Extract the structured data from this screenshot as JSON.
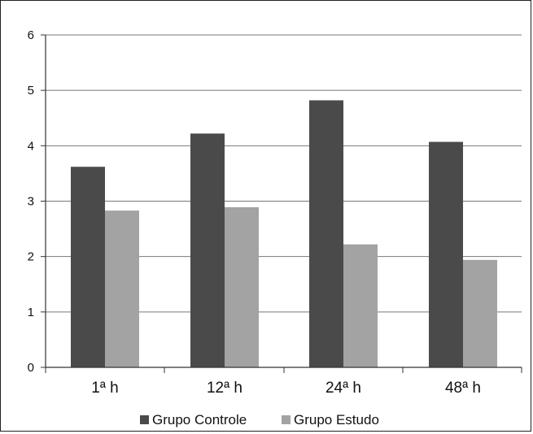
{
  "chart_data": {
    "type": "bar",
    "categories": [
      "1ª h",
      "12ª h",
      "24ª h",
      "48ª h"
    ],
    "series": [
      {
        "name": "Grupo Controle",
        "values": [
          3.62,
          4.22,
          4.82,
          4.07
        ],
        "color": "#4a4a4a"
      },
      {
        "name": "Grupo Estudo",
        "values": [
          2.83,
          2.89,
          2.22,
          1.94
        ],
        "color": "#a3a3a3"
      }
    ],
    "title": "",
    "xlabel": "",
    "ylabel": "",
    "ylim": [
      0,
      6
    ],
    "yticks": [
      "0",
      "1",
      "2",
      "3",
      "4",
      "5",
      "6"
    ],
    "grid": true,
    "legend_position": "bottom"
  }
}
